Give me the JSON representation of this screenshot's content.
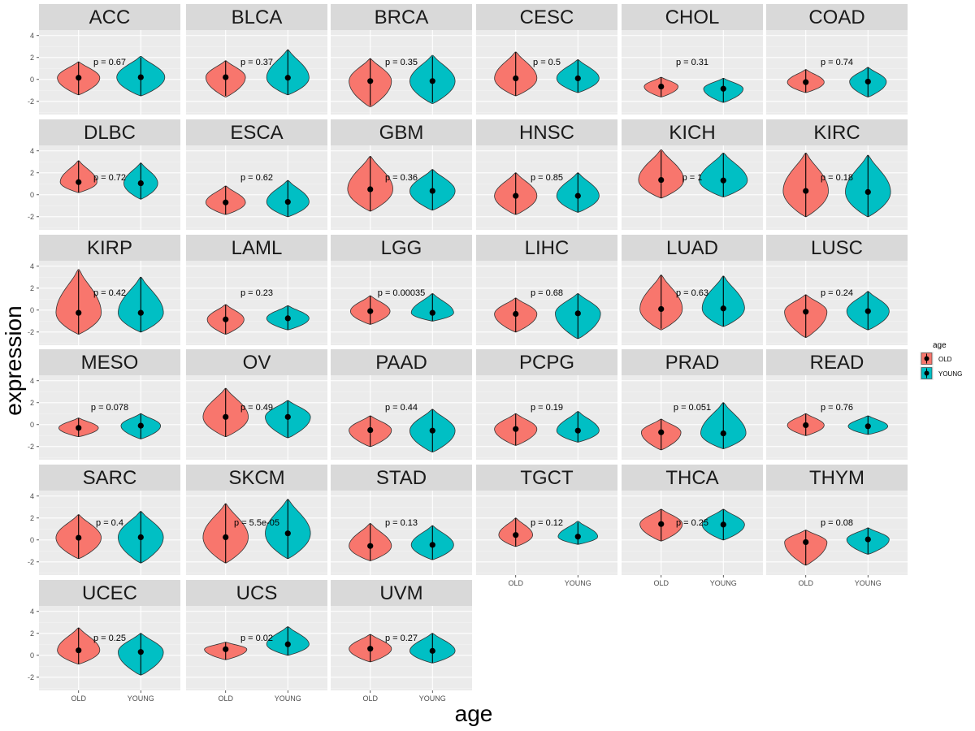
{
  "chart_data": {
    "type": "violin",
    "xlabel": "age",
    "ylabel": "expression",
    "categories": [
      "OLD",
      "YOUNG"
    ],
    "y_ticks": [
      4,
      2,
      0,
      -2
    ],
    "ylim": [
      -3.2,
      4.5
    ],
    "legend": {
      "title": "age",
      "position": "right",
      "entries": [
        {
          "label": "OLD",
          "color": "#F8766D"
        },
        {
          "label": "YOUNG",
          "color": "#00BFC4"
        }
      ]
    },
    "facets": [
      {
        "name": "ACC",
        "p": "p = 0.67",
        "old": {
          "median": 0.15,
          "lo": -1.4,
          "hi": 1.6,
          "max": 1.6,
          "min": -1.4,
          "width": 0.75
        },
        "young": {
          "median": 0.2,
          "lo": -1.5,
          "hi": 2.0,
          "max": 2.1,
          "min": -1.5,
          "width": 0.85
        }
      },
      {
        "name": "BLCA",
        "p": "p = 0.37",
        "old": {
          "median": 0.2,
          "lo": -1.5,
          "hi": 1.7,
          "max": 1.7,
          "min": -1.6,
          "width": 0.7
        },
        "young": {
          "median": 0.15,
          "lo": -1.4,
          "hi": 2.7,
          "max": 2.7,
          "min": -1.4,
          "width": 0.75
        }
      },
      {
        "name": "BRCA",
        "p": "p = 0.35",
        "old": {
          "median": -0.15,
          "lo": -2.4,
          "hi": 1.9,
          "max": 1.9,
          "min": -2.5,
          "width": 0.75
        },
        "young": {
          "median": -0.15,
          "lo": -2.1,
          "hi": 2.1,
          "max": 2.2,
          "min": -2.2,
          "width": 0.8
        }
      },
      {
        "name": "CESC",
        "p": "p = 0.5",
        "old": {
          "median": 0.1,
          "lo": -1.5,
          "hi": 2.5,
          "max": 2.5,
          "min": -1.5,
          "width": 0.75
        },
        "young": {
          "median": 0.1,
          "lo": -1.2,
          "hi": 1.8,
          "max": 1.8,
          "min": -1.2,
          "width": 0.75
        }
      },
      {
        "name": "CHOL",
        "p": "p = 0.31",
        "old": {
          "median": -0.65,
          "lo": -1.6,
          "hi": 0.2,
          "max": 0.2,
          "min": -1.6,
          "width": 0.6
        },
        "young": {
          "median": -0.85,
          "lo": -2.1,
          "hi": 0.1,
          "max": 0.1,
          "min": -2.1,
          "width": 0.7
        }
      },
      {
        "name": "COAD",
        "p": "p = 0.74",
        "old": {
          "median": -0.25,
          "lo": -1.2,
          "hi": 0.9,
          "max": 0.9,
          "min": -1.2,
          "width": 0.65
        },
        "young": {
          "median": -0.2,
          "lo": -1.6,
          "hi": 1.1,
          "max": 1.1,
          "min": -1.6,
          "width": 0.65
        }
      },
      {
        "name": "DLBC",
        "p": "p = 0.72",
        "old": {
          "median": 1.15,
          "lo": 0.2,
          "hi": 3.1,
          "max": 3.1,
          "min": 0.2,
          "width": 0.65
        },
        "young": {
          "median": 1.05,
          "lo": -0.4,
          "hi": 2.9,
          "max": 2.9,
          "min": -0.4,
          "width": 0.6
        }
      },
      {
        "name": "ESCA",
        "p": "p = 0.62",
        "old": {
          "median": -0.7,
          "lo": -1.8,
          "hi": 0.8,
          "max": 0.8,
          "min": -1.8,
          "width": 0.7
        },
        "young": {
          "median": -0.65,
          "lo": -2.0,
          "hi": 1.3,
          "max": 1.3,
          "min": -2.0,
          "width": 0.75
        }
      },
      {
        "name": "GBM",
        "p": "p = 0.36",
        "old": {
          "median": 0.5,
          "lo": -1.5,
          "hi": 3.5,
          "max": 3.5,
          "min": -1.5,
          "width": 0.8
        },
        "young": {
          "median": 0.35,
          "lo": -1.4,
          "hi": 2.3,
          "max": 2.3,
          "min": -1.4,
          "width": 0.8
        }
      },
      {
        "name": "HNSC",
        "p": "p = 0.85",
        "old": {
          "median": -0.1,
          "lo": -1.8,
          "hi": 2.0,
          "max": 2.0,
          "min": -1.8,
          "width": 0.75
        },
        "young": {
          "median": -0.1,
          "lo": -1.6,
          "hi": 2.0,
          "max": 2.0,
          "min": -1.6,
          "width": 0.75
        }
      },
      {
        "name": "KICH",
        "p": "p = 1",
        "old": {
          "median": 1.35,
          "lo": -0.3,
          "hi": 4.0,
          "max": 4.1,
          "min": -0.3,
          "width": 0.8
        },
        "young": {
          "median": 1.3,
          "lo": -0.2,
          "hi": 3.8,
          "max": 3.8,
          "min": -0.2,
          "width": 0.85
        }
      },
      {
        "name": "KIRC",
        "p": "p = 0.18",
        "old": {
          "median": 0.35,
          "lo": -2.0,
          "hi": 3.8,
          "max": 3.8,
          "min": -2.0,
          "width": 0.8
        },
        "young": {
          "median": 0.25,
          "lo": -2.0,
          "hi": 3.6,
          "max": 3.6,
          "min": -2.0,
          "width": 0.8
        }
      },
      {
        "name": "KIRP",
        "p": "p = 0.42",
        "old": {
          "median": -0.25,
          "lo": -2.2,
          "hi": 3.6,
          "max": 3.7,
          "min": -2.2,
          "width": 0.8
        },
        "young": {
          "median": -0.25,
          "lo": -2.0,
          "hi": 3.0,
          "max": 3.0,
          "min": -2.0,
          "width": 0.8
        }
      },
      {
        "name": "LAML",
        "p": "p = 0.23",
        "old": {
          "median": -0.85,
          "lo": -2.2,
          "hi": 0.5,
          "max": 0.5,
          "min": -2.2,
          "width": 0.65
        },
        "young": {
          "median": -0.75,
          "lo": -1.8,
          "hi": 0.4,
          "max": 0.4,
          "min": -1.8,
          "width": 0.75
        }
      },
      {
        "name": "LGG",
        "p": "p = 0.00035",
        "old": {
          "median": -0.1,
          "lo": -1.3,
          "hi": 1.3,
          "max": 1.3,
          "min": -1.3,
          "width": 0.7
        },
        "young": {
          "median": -0.25,
          "lo": -1.0,
          "hi": 1.5,
          "max": 1.5,
          "min": -1.0,
          "width": 0.75
        }
      },
      {
        "name": "LIHC",
        "p": "p = 0.68",
        "old": {
          "median": -0.35,
          "lo": -2.0,
          "hi": 1.1,
          "max": 1.1,
          "min": -2.0,
          "width": 0.75
        },
        "young": {
          "median": -0.3,
          "lo": -2.6,
          "hi": 1.5,
          "max": 1.5,
          "min": -2.6,
          "width": 0.8
        }
      },
      {
        "name": "LUAD",
        "p": "p = 0.63",
        "old": {
          "median": 0.1,
          "lo": -1.7,
          "hi": 3.2,
          "max": 3.2,
          "min": -1.8,
          "width": 0.75
        },
        "young": {
          "median": 0.15,
          "lo": -1.5,
          "hi": 3.1,
          "max": 3.1,
          "min": -1.5,
          "width": 0.75
        }
      },
      {
        "name": "LUSC",
        "p": "p = 0.24",
        "old": {
          "median": -0.15,
          "lo": -2.5,
          "hi": 1.4,
          "max": 1.4,
          "min": -2.5,
          "width": 0.75
        },
        "young": {
          "median": -0.1,
          "lo": -1.8,
          "hi": 1.7,
          "max": 1.7,
          "min": -1.8,
          "width": 0.75
        }
      },
      {
        "name": "MESO",
        "p": "p = 0.078",
        "old": {
          "median": -0.3,
          "lo": -1.1,
          "hi": 0.6,
          "max": 0.6,
          "min": -1.1,
          "width": 0.7
        },
        "young": {
          "median": -0.1,
          "lo": -1.3,
          "hi": 1.0,
          "max": 1.0,
          "min": -1.3,
          "width": 0.7
        }
      },
      {
        "name": "OV",
        "p": "p = 0.49",
        "old": {
          "median": 0.7,
          "lo": -1.1,
          "hi": 3.3,
          "max": 3.3,
          "min": -1.1,
          "width": 0.8
        },
        "young": {
          "median": 0.7,
          "lo": -1.2,
          "hi": 2.2,
          "max": 2.2,
          "min": -1.2,
          "width": 0.8
        }
      },
      {
        "name": "PAAD",
        "p": "p = 0.44",
        "old": {
          "median": -0.5,
          "lo": -2.0,
          "hi": 0.8,
          "max": 0.8,
          "min": -2.0,
          "width": 0.75
        },
        "young": {
          "median": -0.55,
          "lo": -2.5,
          "hi": 1.4,
          "max": 1.4,
          "min": -2.5,
          "width": 0.8
        }
      },
      {
        "name": "PCPG",
        "p": "p = 0.19",
        "old": {
          "median": -0.4,
          "lo": -1.9,
          "hi": 1.0,
          "max": 1.0,
          "min": -1.9,
          "width": 0.75
        },
        "young": {
          "median": -0.55,
          "lo": -1.6,
          "hi": 1.2,
          "max": 1.2,
          "min": -1.6,
          "width": 0.75
        }
      },
      {
        "name": "PRAD",
        "p": "p = 0.051",
        "old": {
          "median": -0.7,
          "lo": -2.3,
          "hi": 0.5,
          "max": 0.5,
          "min": -2.3,
          "width": 0.7
        },
        "young": {
          "median": -0.8,
          "lo": -2.2,
          "hi": 2.0,
          "max": 2.0,
          "min": -2.2,
          "width": 0.8
        }
      },
      {
        "name": "READ",
        "p": "p = 0.76",
        "old": {
          "median": -0.05,
          "lo": -1.0,
          "hi": 1.0,
          "max": 1.0,
          "min": -1.0,
          "width": 0.65
        },
        "young": {
          "median": -0.15,
          "lo": -0.9,
          "hi": 0.8,
          "max": 0.8,
          "min": -0.9,
          "width": 0.7
        }
      },
      {
        "name": "SARC",
        "p": "p = 0.4",
        "old": {
          "median": 0.2,
          "lo": -1.7,
          "hi": 2.3,
          "max": 2.3,
          "min": -1.7,
          "width": 0.8
        },
        "young": {
          "median": 0.25,
          "lo": -2.1,
          "hi": 2.6,
          "max": 2.6,
          "min": -2.1,
          "width": 0.8
        }
      },
      {
        "name": "SKCM",
        "p": "p = 5.5e-05",
        "old": {
          "median": 0.25,
          "lo": -2.1,
          "hi": 3.3,
          "max": 3.3,
          "min": -2.1,
          "width": 0.8
        },
        "young": {
          "median": 0.6,
          "lo": -1.7,
          "hi": 3.7,
          "max": 3.7,
          "min": -1.7,
          "width": 0.8
        }
      },
      {
        "name": "STAD",
        "p": "p = 0.13",
        "old": {
          "median": -0.55,
          "lo": -1.9,
          "hi": 1.5,
          "max": 1.5,
          "min": -1.9,
          "width": 0.75
        },
        "young": {
          "median": -0.45,
          "lo": -1.8,
          "hi": 1.3,
          "max": 1.3,
          "min": -1.8,
          "width": 0.75
        }
      },
      {
        "name": "TGCT",
        "p": "p = 0.12",
        "old": {
          "median": 0.45,
          "lo": -0.6,
          "hi": 2.0,
          "max": 2.0,
          "min": -0.6,
          "width": 0.6
        },
        "young": {
          "median": 0.3,
          "lo": -0.4,
          "hi": 1.6,
          "max": 1.7,
          "min": -0.4,
          "width": 0.7
        }
      },
      {
        "name": "THCA",
        "p": "p = 0.25",
        "old": {
          "median": 1.45,
          "lo": -0.1,
          "hi": 2.8,
          "max": 2.8,
          "min": -0.1,
          "width": 0.75
        },
        "young": {
          "median": 1.4,
          "lo": 0.0,
          "hi": 2.8,
          "max": 2.8,
          "min": 0.0,
          "width": 0.75
        }
      },
      {
        "name": "THYM",
        "p": "p = 0.08",
        "old": {
          "median": -0.2,
          "lo": -2.3,
          "hi": 0.9,
          "max": 0.9,
          "min": -2.3,
          "width": 0.75
        },
        "young": {
          "median": 0.05,
          "lo": -1.3,
          "hi": 1.1,
          "max": 1.1,
          "min": -1.3,
          "width": 0.75
        }
      },
      {
        "name": "UCEC",
        "p": "p = 0.25",
        "old": {
          "median": 0.45,
          "lo": -0.8,
          "hi": 2.5,
          "max": 2.5,
          "min": -0.8,
          "width": 0.75
        },
        "young": {
          "median": 0.3,
          "lo": -1.8,
          "hi": 2.0,
          "max": 2.0,
          "min": -1.8,
          "width": 0.8
        }
      },
      {
        "name": "UCS",
        "p": "p = 0.02",
        "old": {
          "median": 0.55,
          "lo": -0.4,
          "hi": 1.2,
          "max": 1.2,
          "min": -0.4,
          "width": 0.75
        },
        "young": {
          "median": 1.0,
          "lo": 0.0,
          "hi": 2.6,
          "max": 2.6,
          "min": 0.0,
          "width": 0.75
        }
      },
      {
        "name": "UVM",
        "p": "p = 0.27",
        "old": {
          "median": 0.6,
          "lo": -0.6,
          "hi": 1.9,
          "max": 1.9,
          "min": -0.6,
          "width": 0.75
        },
        "young": {
          "median": 0.4,
          "lo": -0.7,
          "hi": 2.0,
          "max": 2.0,
          "min": -0.7,
          "width": 0.8
        }
      }
    ]
  }
}
